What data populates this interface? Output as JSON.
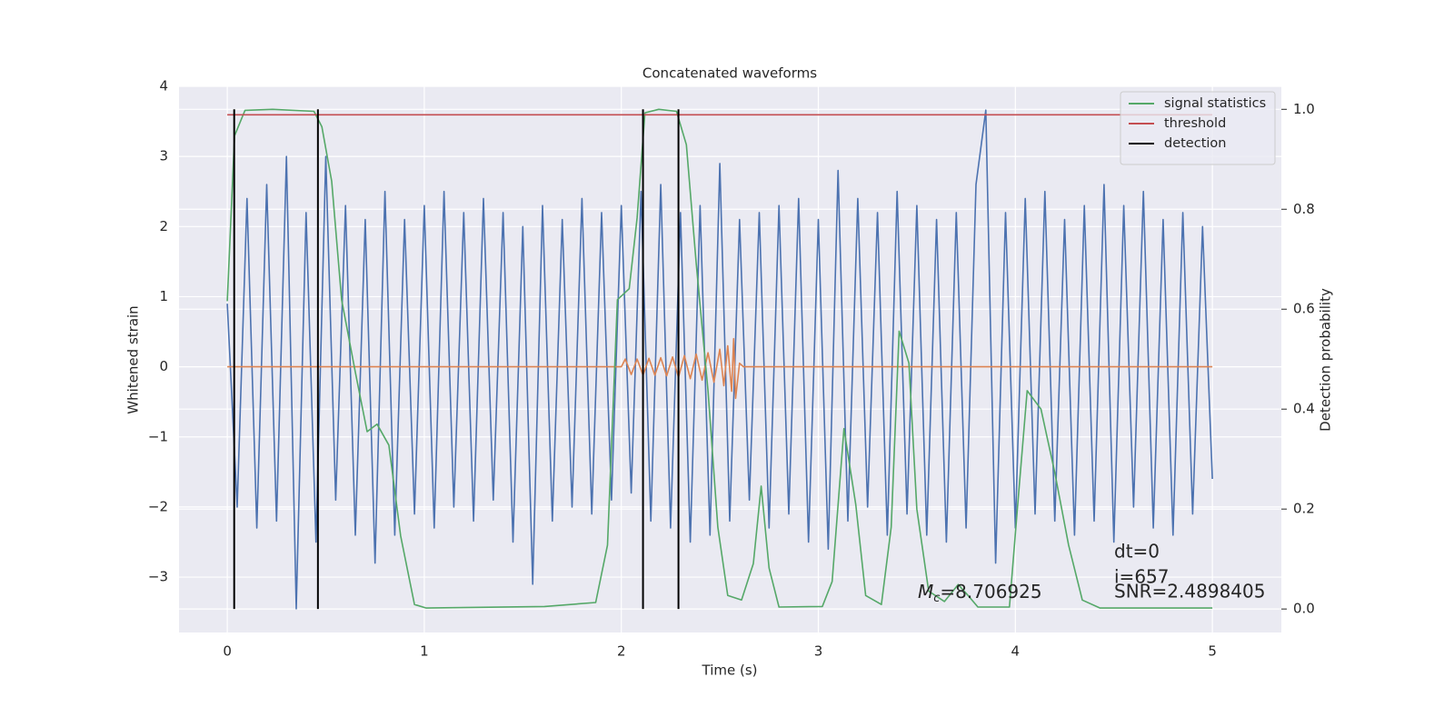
{
  "chart_data": {
    "type": "line",
    "title": "Concatenated waveforms",
    "x_label": "Time (s)",
    "y_label": "Whitened strain",
    "y2_label": "Detection probability",
    "xlim": [
      -0.245,
      5.35
    ],
    "ylim": [
      -3.79,
      4.0
    ],
    "y2lim": [
      -0.047,
      1.046
    ],
    "xticks": [
      0,
      1,
      2,
      3,
      4,
      5
    ],
    "yticks": [
      {
        "value": -3,
        "label": "−3"
      },
      {
        "value": -2,
        "label": "−2"
      },
      {
        "value": -1,
        "label": "−1"
      },
      0,
      1,
      2,
      3,
      4
    ],
    "y2ticks": [
      {
        "value": 0,
        "label": "0.0"
      },
      0.2,
      0.4,
      0.6,
      0.8,
      {
        "value": 1,
        "label": "1.0"
      }
    ],
    "grid": true,
    "legend": "upper right",
    "series": [
      {
        "color": "#4c72b0",
        "axis": "y",
        "x": [
          0,
          0.05,
          0.1,
          0.15,
          0.2,
          0.25,
          0.3,
          0.35,
          0.4,
          0.45,
          0.5,
          0.55,
          0.6,
          0.65,
          0.7,
          0.75,
          0.8,
          0.85,
          0.9,
          0.95,
          1,
          1.05,
          1.1,
          1.15,
          1.2,
          1.25,
          1.3,
          1.35,
          1.4,
          1.45,
          1.5,
          1.55,
          1.6,
          1.65,
          1.7,
          1.75,
          1.8,
          1.85,
          1.9,
          1.95,
          2,
          2.05,
          2.1,
          2.15,
          2.2,
          2.25,
          2.3,
          2.35,
          2.4,
          2.45,
          2.5,
          2.55,
          2.6,
          2.65,
          2.7,
          2.75,
          2.8,
          2.85,
          2.9,
          2.95,
          3,
          3.05,
          3.1,
          3.15,
          3.2,
          3.25,
          3.3,
          3.35,
          3.4,
          3.45,
          3.5,
          3.55,
          3.6,
          3.65,
          3.7,
          3.75,
          3.8,
          3.85,
          3.9,
          3.95,
          4,
          4.05,
          4.1,
          4.15,
          4.2,
          4.25,
          4.3,
          4.35,
          4.4,
          4.45,
          4.5,
          4.55,
          4.6,
          4.65,
          4.7,
          4.75,
          4.8,
          4.85,
          4.9,
          4.95,
          5
        ],
        "values": [
          0.9,
          -2.0,
          2.4,
          -2.3,
          2.6,
          -2.2,
          3.0,
          -3.45,
          2.2,
          -2.5,
          3.0,
          -1.9,
          2.3,
          -2.4,
          2.1,
          -2.8,
          2.5,
          -2.4,
          2.1,
          -2.1,
          2.3,
          -2.3,
          2.5,
          -2.0,
          2.2,
          -2.2,
          2.4,
          -1.9,
          2.2,
          -2.5,
          2.0,
          -3.1,
          2.3,
          -2.2,
          2.1,
          -2.0,
          2.4,
          -2.1,
          2.2,
          -1.9,
          2.3,
          -1.8,
          2.5,
          -2.2,
          2.6,
          -2.3,
          2.2,
          -2.5,
          2.3,
          -2.4,
          2.9,
          -2.2,
          2.1,
          -1.9,
          2.2,
          -2.3,
          2.3,
          -2.1,
          2.4,
          -2.5,
          2.1,
          -2.6,
          2.8,
          -2.2,
          2.4,
          -2.0,
          2.2,
          -2.4,
          2.5,
          -2.1,
          2.3,
          -2.4,
          2.1,
          -2.5,
          2.2,
          -2.3,
          2.6,
          3.66,
          -2.8,
          2.2,
          -2.3,
          2.4,
          -2.1,
          2.5,
          -2.2,
          2.1,
          -2.4,
          2.3,
          -2.2,
          2.6,
          -2.5,
          2.3,
          -2.0,
          2.5,
          -2.3,
          2.1,
          -2.4,
          2.2,
          -2.1,
          2.0,
          -1.6
        ]
      },
      {
        "color": "#dd8452",
        "axis": "y",
        "x": [
          0,
          2.0,
          2.02,
          2.05,
          2.08,
          2.11,
          2.14,
          2.17,
          2.2,
          2.23,
          2.26,
          2.29,
          2.32,
          2.35,
          2.38,
          2.41,
          2.44,
          2.47,
          2.5,
          2.52,
          2.54,
          2.56,
          2.57,
          2.58,
          2.6,
          2.62,
          5
        ],
        "values": [
          0,
          0,
          0.11,
          -0.11,
          0.11,
          -0.12,
          0.12,
          -0.12,
          0.13,
          -0.13,
          0.14,
          -0.15,
          0.16,
          -0.17,
          0.18,
          -0.19,
          0.2,
          -0.22,
          0.25,
          -0.27,
          0.3,
          -0.35,
          0.4,
          -0.45,
          0.05,
          0,
          0
        ]
      },
      {
        "name": "signal statistics",
        "color": "#55a868",
        "axis": "y2",
        "x": [
          0,
          0.037,
          0.09,
          0.23,
          0.44,
          0.48,
          0.53,
          0.58,
          0.65,
          0.71,
          0.76,
          0.82,
          0.88,
          0.95,
          1.01,
          1.61,
          1.87,
          1.93,
          1.98,
          2.04,
          2.08,
          2.12,
          2.19,
          2.28,
          2.33,
          2.38,
          2.44,
          2.49,
          2.54,
          2.61,
          2.67,
          2.71,
          2.75,
          2.8,
          3.02,
          3.07,
          3.13,
          3.19,
          3.24,
          3.32,
          3.37,
          3.41,
          3.46,
          3.5,
          3.56,
          3.64,
          3.71,
          3.76,
          3.81,
          3.97,
          4.01,
          4.06,
          4.13,
          4.2,
          4.27,
          4.34,
          4.43,
          5
        ],
        "values": [
          0.616,
          0.947,
          0.998,
          1.0,
          0.996,
          0.965,
          0.856,
          0.619,
          0.474,
          0.355,
          0.37,
          0.328,
          0.146,
          0.009,
          0.002,
          0.005,
          0.013,
          0.128,
          0.619,
          0.641,
          0.783,
          0.993,
          1.0,
          0.996,
          0.929,
          0.692,
          0.437,
          0.164,
          0.027,
          0.018,
          0.091,
          0.246,
          0.082,
          0.004,
          0.005,
          0.055,
          0.361,
          0.209,
          0.027,
          0.009,
          0.164,
          0.556,
          0.492,
          0.2,
          0.036,
          0.015,
          0.049,
          0.027,
          0.004,
          0.004,
          0.2,
          0.437,
          0.4,
          0.273,
          0.128,
          0.018,
          0.002,
          0.002
        ]
      },
      {
        "name": "threshold",
        "color": "#c44e52",
        "axis": "y2",
        "x": [
          0,
          5
        ],
        "values": [
          0.989,
          0.989
        ]
      }
    ],
    "detections": {
      "name": "detection",
      "color": "#000000",
      "x": [
        0.035,
        0.46,
        2.11,
        2.29
      ],
      "y2range": [
        0,
        1
      ]
    },
    "annotations": {
      "dt": "dt=0",
      "i": "i=657",
      "snr": "SNR=2.4898405",
      "mc_symbol": "M",
      "mc_subscript": "c",
      "mc_value": "=8.706925"
    }
  }
}
